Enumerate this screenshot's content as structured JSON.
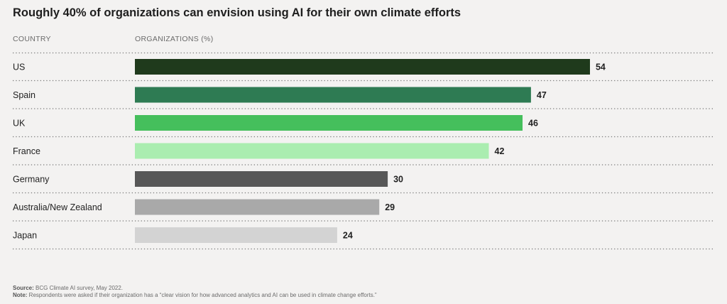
{
  "chart_data": {
    "type": "bar",
    "orientation": "horizontal",
    "title": "Roughly 40% of organizations can envision using AI for their own climate efforts",
    "category_header": "COUNTRY",
    "value_header": "ORGANIZATIONS (%)",
    "categories": [
      "US",
      "Spain",
      "UK",
      "France",
      "Germany",
      "Australia/New Zealand",
      "Japan"
    ],
    "values": [
      54,
      47,
      46,
      42,
      30,
      29,
      24
    ],
    "colors": [
      "#1f3a1c",
      "#2e7b53",
      "#45bf5c",
      "#aaedb0",
      "#575757",
      "#a9a9a9",
      "#d3d3d3"
    ],
    "grid": false
  },
  "footer": {
    "source_label": "Source:",
    "source_text": " BCG Climate AI survey, May 2022.",
    "note_label": "Note:",
    "note_text": " Respondents were asked if their organization has a “clear vision for how advanced analytics and AI can be used in climate change efforts.”"
  }
}
